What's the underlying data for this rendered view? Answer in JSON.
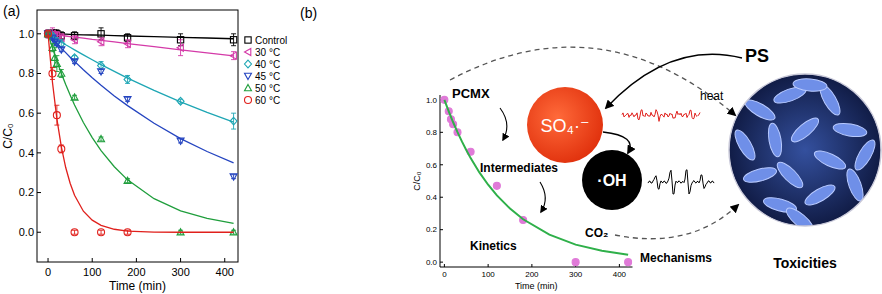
{
  "chart_data": [
    {
      "type": "scatter",
      "title": "(a)",
      "x_label": "Time (min)",
      "y_label": "C/C₀",
      "x": [
        0,
        10,
        15,
        20,
        30,
        60,
        120,
        180,
        300,
        420
      ],
      "fit_x": [
        0,
        10,
        20,
        30,
        40,
        50,
        60,
        80,
        100,
        120,
        150,
        180,
        240,
        300,
        360,
        420
      ],
      "xlim": [
        -25,
        430
      ],
      "xticks": [
        0,
        100,
        200,
        300,
        400
      ],
      "ylim": [
        -0.15,
        1.12
      ],
      "yticks": [
        {
          "value": 0,
          "label": "0.0"
        },
        0.2,
        0.4,
        0.6,
        0.8,
        {
          "value": 1,
          "label": "1.0"
        }
      ],
      "legend": "upper right",
      "series": [
        {
          "name": "Control",
          "color": "#000000",
          "marker": "open-square",
          "values": [
            1.0,
            1.0,
            1.0,
            1.0,
            0.99,
            0.99,
            1.0,
            0.98,
            0.97,
            0.97
          ],
          "errors": [
            0.02,
            0.02,
            0.02,
            0.02,
            0.02,
            0.02,
            0.03,
            0.02,
            0.03,
            0.03
          ],
          "fit": [
            1.0,
            0.999,
            0.999,
            0.998,
            0.998,
            0.997,
            0.996,
            0.995,
            0.994,
            0.993,
            0.991,
            0.989,
            0.986,
            0.982,
            0.979,
            0.975
          ]
        },
        {
          "name": "30 °C",
          "color": "#d43aa8",
          "marker": "open-triangle-left",
          "values": [
            1.0,
            1.0,
            0.99,
            0.99,
            0.98,
            0.97,
            0.96,
            0.95,
            0.93,
            0.89
          ],
          "errors": [
            0.02,
            0.03,
            0.02,
            0.02,
            0.02,
            0.02,
            0.02,
            0.02,
            0.04,
            0.02
          ],
          "fit": [
            1.0,
            0.997,
            0.994,
            0.992,
            0.989,
            0.986,
            0.983,
            0.978,
            0.972,
            0.967,
            0.959,
            0.951,
            0.935,
            0.919,
            0.904,
            0.889
          ]
        },
        {
          "name": "40 °C",
          "color": "#1ea6b4",
          "marker": "open-diamond",
          "values": [
            1.0,
            0.99,
            0.97,
            0.96,
            0.95,
            0.88,
            0.84,
            0.77,
            0.66,
            0.56
          ],
          "errors": [
            0.01,
            0.01,
            0.01,
            0.02,
            0.02,
            0.01,
            0.02,
            0.02,
            0.01,
            0.04
          ],
          "fit": [
            1.0,
            0.986,
            0.972,
            0.959,
            0.945,
            0.932,
            0.919,
            0.894,
            0.869,
            0.845,
            0.811,
            0.777,
            0.715,
            0.657,
            0.604,
            0.555
          ]
        },
        {
          "name": "45 °C",
          "color": "#2444c0",
          "marker": "open-triangle-down",
          "values": [
            1.0,
            0.98,
            0.96,
            0.95,
            0.92,
            0.86,
            0.81,
            0.67,
            0.46,
            0.28
          ],
          "errors": [
            0.01,
            0.01,
            0.01,
            0.01,
            0.01,
            0.01,
            0.01,
            0.01,
            0.01,
            0.01
          ],
          "fit": [
            1.0,
            0.975,
            0.951,
            0.928,
            0.905,
            0.882,
            0.861,
            0.819,
            0.779,
            0.741,
            0.687,
            0.638,
            0.549,
            0.472,
            0.407,
            0.35
          ]
        },
        {
          "name": "50 °C",
          "color": "#1f9e3c",
          "marker": "open-triangle-up",
          "values": [
            1.0,
            0.93,
            0.88,
            0.85,
            0.8,
            0.68,
            0.47,
            0.26,
            0.0,
            0.0
          ],
          "errors": [
            0.01,
            0.02,
            0.05,
            0.04,
            0.02,
            0.01,
            0.01,
            0.01,
            0.01,
            0.01
          ],
          "fit": [
            1.0,
            0.929,
            0.862,
            0.801,
            0.744,
            0.691,
            0.641,
            0.553,
            0.477,
            0.411,
            0.33,
            0.264,
            0.169,
            0.108,
            0.07,
            0.045
          ]
        },
        {
          "name": "60 °C",
          "color": "#e0201c",
          "marker": "open-circle",
          "values": [
            1.0,
            0.8,
            null,
            0.59,
            0.42,
            0.0,
            0.0,
            0.0,
            null,
            null
          ],
          "errors": [
            0.01,
            0.03,
            null,
            0.05,
            0.02,
            0.01,
            0.01,
            0.01,
            null,
            null
          ],
          "fit": [
            1.0,
            0.756,
            0.571,
            0.432,
            0.326,
            0.247,
            0.186,
            0.106,
            0.061,
            0.035,
            0.015,
            0.006,
            0.001,
            0.0,
            0.0,
            0.0
          ]
        }
      ]
    },
    {
      "type": "scatter",
      "x_label": "Time (min)",
      "y_label": "C/C₀",
      "x": [
        0,
        10,
        15,
        20,
        30,
        60,
        120,
        180,
        300,
        420
      ],
      "xlim": [
        -10,
        430
      ],
      "xticks": [
        0,
        100,
        200,
        300,
        400
      ],
      "ylim": [
        -0.03,
        1.03
      ],
      "yticks": [
        {
          "value": 0,
          "label": "0.0"
        },
        0.2,
        0.4,
        0.6,
        0.8,
        {
          "value": 1,
          "label": "1.0"
        }
      ],
      "series": [
        {
          "type": "scatter",
          "color": "#e07ad8",
          "marker": "filled-circle",
          "values": [
            1.0,
            0.93,
            0.88,
            0.85,
            0.8,
            0.68,
            0.47,
            0.26,
            0.0,
            0.0
          ]
        },
        {
          "type": "line",
          "color": "#2fb04a",
          "x": [
            0,
            10,
            20,
            30,
            40,
            50,
            60,
            80,
            100,
            120,
            150,
            180,
            240,
            300,
            360,
            420
          ],
          "values": [
            1.0,
            0.929,
            0.862,
            0.801,
            0.744,
            0.691,
            0.641,
            0.553,
            0.477,
            0.411,
            0.33,
            0.264,
            0.169,
            0.108,
            0.07,
            0.045
          ]
        }
      ]
    }
  ],
  "diagram": {
    "title": "(b)",
    "ps": "PS",
    "heat": "heat",
    "sulfate_radical": "SO₄·⁻",
    "hydroxyl_radical": "·OH",
    "pcmx": "PCMX",
    "intermediates": "Intermediates",
    "kinetics": "Kinetics",
    "co2": "CO₂",
    "mechanisms": "Mechanisms",
    "toxicities": "Toxicities"
  }
}
